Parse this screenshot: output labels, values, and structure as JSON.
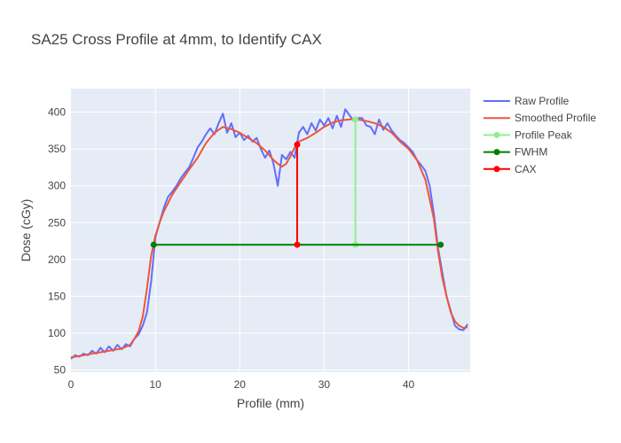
{
  "chart_data": {
    "type": "line",
    "title": "SA25 Cross Profile at 4mm, to Identify CAX",
    "xlabel": "Profile (mm)",
    "ylabel": "Dose (cGy)",
    "xlim": [
      0,
      47.3
    ],
    "ylim": [
      47,
      432
    ],
    "x_ticks": [
      0,
      10,
      20,
      30,
      40
    ],
    "y_ticks": [
      50,
      100,
      150,
      200,
      250,
      300,
      350,
      400
    ],
    "grid": true,
    "legend_position": "right",
    "colors": {
      "plot_bg": "#e5ecf6",
      "grid": "#ffffff",
      "raw": "#636efa",
      "smoothed": "#ef553b",
      "peak": "#90ee90",
      "fwhm": "#008000",
      "cax": "#ff0000"
    },
    "series": [
      {
        "name": "Raw Profile",
        "style": "line",
        "x": [
          0,
          0.5,
          1,
          1.5,
          2,
          2.5,
          3,
          3.5,
          4,
          4.5,
          5,
          5.5,
          6,
          6.5,
          7,
          7.5,
          8,
          8.5,
          9,
          9.5,
          10,
          10.5,
          11,
          11.5,
          12,
          12.5,
          13,
          13.5,
          14,
          14.5,
          15,
          15.5,
          16,
          16.5,
          17,
          17.5,
          18,
          18.5,
          19,
          19.5,
          20,
          20.5,
          21,
          21.5,
          22,
          22.5,
          23,
          23.5,
          24,
          24.5,
          25,
          25.5,
          26,
          26.5,
          27,
          27.5,
          28,
          28.5,
          29,
          29.5,
          30,
          30.5,
          31,
          31.5,
          32,
          32.5,
          33,
          33.5,
          34,
          34.5,
          35,
          35.5,
          36,
          36.5,
          37,
          37.5,
          38,
          38.5,
          39,
          39.5,
          40,
          40.5,
          41,
          41.5,
          42,
          42.5,
          43,
          43.5,
          44,
          44.5,
          45,
          45.5,
          46,
          46.5,
          47
        ],
        "values": [
          65,
          70,
          68,
          72,
          70,
          76,
          72,
          80,
          74,
          82,
          76,
          84,
          78,
          85,
          82,
          92,
          98,
          110,
          128,
          170,
          230,
          250,
          270,
          285,
          292,
          300,
          310,
          318,
          325,
          338,
          352,
          360,
          370,
          378,
          370,
          385,
          398,
          372,
          385,
          366,
          372,
          362,
          368,
          360,
          365,
          350,
          338,
          348,
          330,
          300,
          342,
          336,
          346,
          338,
          372,
          380,
          370,
          385,
          375,
          390,
          382,
          392,
          378,
          395,
          380,
          404,
          396,
          388,
          392,
          392,
          382,
          380,
          370,
          390,
          376,
          385,
          375,
          368,
          362,
          358,
          352,
          346,
          335,
          328,
          320,
          300,
          262,
          215,
          182,
          150,
          130,
          110,
          105,
          104,
          112
        ]
      },
      {
        "name": "Smoothed Profile",
        "style": "line",
        "x": [
          0,
          1,
          2,
          3,
          4,
          5,
          6,
          7,
          7.5,
          8,
          8.5,
          9,
          9.5,
          10,
          10.5,
          11,
          12,
          13,
          14,
          15,
          16,
          17,
          18,
          19,
          20,
          21,
          22,
          23,
          24,
          24.5,
          25,
          25.5,
          26,
          26.5,
          27,
          28,
          29,
          30,
          31,
          32,
          33,
          33.5,
          34,
          35,
          36,
          37,
          38,
          39,
          40,
          41,
          42,
          43,
          43.5,
          44,
          44.5,
          45,
          45.5,
          46,
          46.5,
          47
        ],
        "values": [
          67,
          69,
          71,
          73,
          75,
          77,
          79,
          84,
          92,
          102,
          122,
          160,
          205,
          232,
          250,
          265,
          288,
          305,
          322,
          338,
          358,
          372,
          380,
          377,
          372,
          365,
          358,
          348,
          335,
          330,
          326,
          330,
          340,
          352,
          360,
          365,
          372,
          380,
          386,
          389,
          390,
          391,
          390,
          388,
          385,
          380,
          372,
          360,
          350,
          335,
          308,
          255,
          210,
          175,
          150,
          128,
          116,
          110,
          107,
          108
        ]
      },
      {
        "name": "Profile Peak",
        "style": "line+markers",
        "x": [
          33.7,
          33.7
        ],
        "values": [
          220,
          390
        ]
      },
      {
        "name": "FWHM",
        "style": "line+markers",
        "x": [
          9.8,
          43.8
        ],
        "values": [
          220,
          220
        ]
      },
      {
        "name": "CAX",
        "style": "line+markers",
        "x": [
          26.8,
          26.8
        ],
        "values": [
          220,
          356
        ]
      }
    ]
  }
}
